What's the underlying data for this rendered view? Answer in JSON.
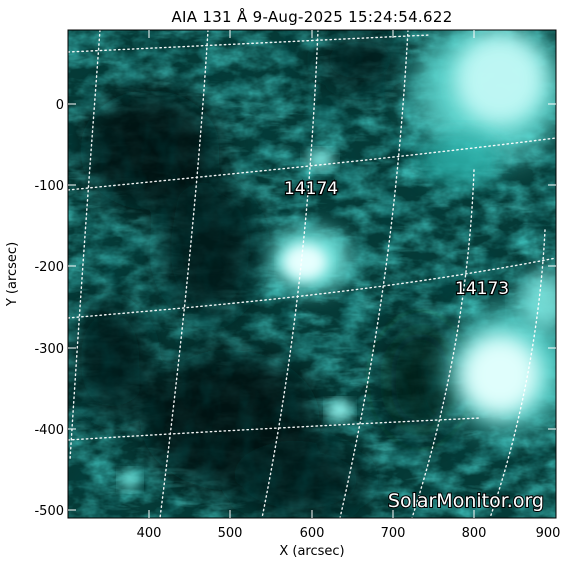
{
  "title": "AIA 131 Å  9-Aug-2025 15:24:54.622",
  "x_axis": {
    "label": "X (arcsec)",
    "ticks": [
      "400",
      "500",
      "600",
      "700",
      "800",
      "900"
    ]
  },
  "y_axis": {
    "label": "Y (arcsec)",
    "ticks": [
      "0",
      "-100",
      "-200",
      "-300",
      "-400",
      "-500"
    ]
  },
  "regions": [
    {
      "id": "14174"
    },
    {
      "id": "14173"
    }
  ],
  "watermark": "SolarMonitor.org",
  "colors": {
    "background": "#ffffff",
    "image_dark": "#021613",
    "image_mid": "#0e6e69",
    "image_bright": "#bff9f6",
    "grid": "#ffffff",
    "text": "#000000"
  }
}
